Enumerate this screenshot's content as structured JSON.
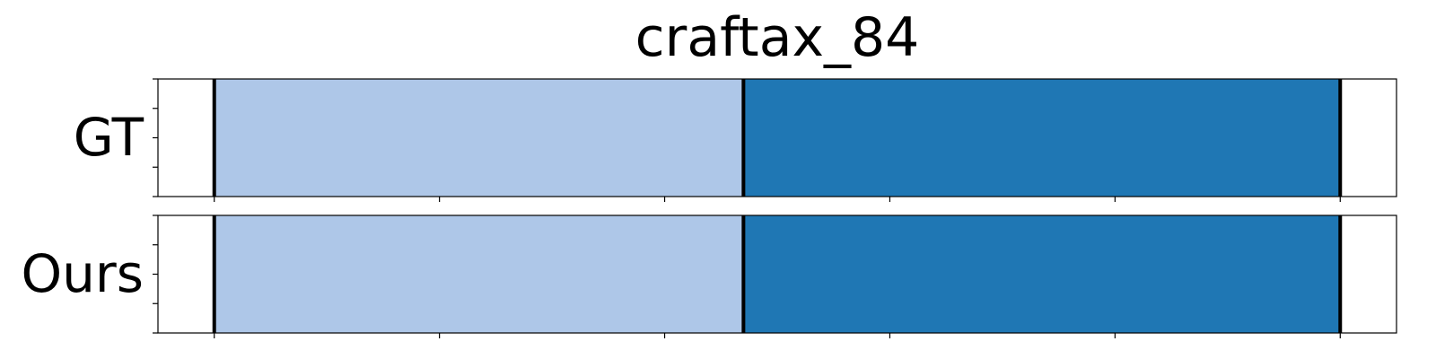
{
  "chart_data": {
    "type": "bar",
    "title": "craftax_84",
    "xlim": [
      0,
      1100
    ],
    "ylim": [
      0,
      1
    ],
    "rows": [
      {
        "label": "GT",
        "segments": [
          {
            "start": 50,
            "end": 520,
            "color": "#aec7e8"
          },
          {
            "start": 520,
            "end": 1050,
            "color": "#1f77b4"
          }
        ],
        "boundaries": [
          50,
          520,
          1050
        ]
      },
      {
        "label": "Ours",
        "segments": [
          {
            "start": 50,
            "end": 520,
            "color": "#aec7e8"
          },
          {
            "start": 520,
            "end": 1050,
            "color": "#1f77b4"
          }
        ],
        "boundaries": [
          50,
          520,
          1050
        ]
      }
    ],
    "x_ticks": [
      50,
      250,
      450,
      650,
      850,
      1050
    ],
    "y_ticks": [
      0,
      0.25,
      0.5,
      0.75,
      1
    ],
    "tick_labels_visible": false,
    "grid": false
  }
}
